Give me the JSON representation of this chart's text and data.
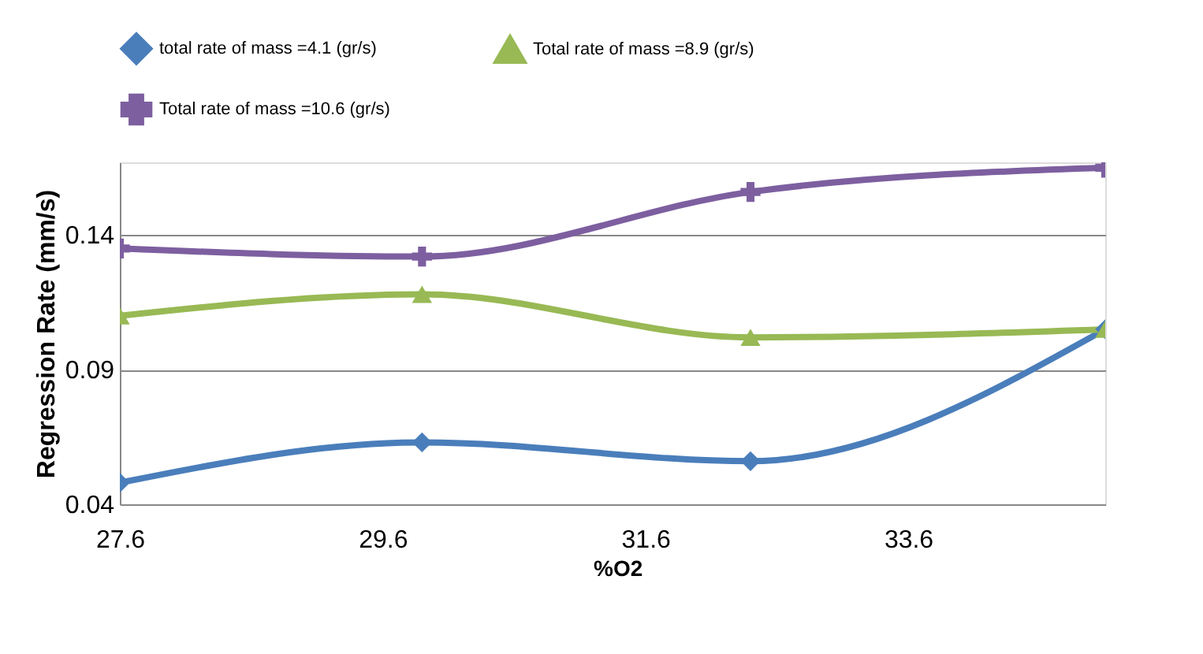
{
  "chart_data": {
    "type": "line",
    "xlabel": "%O2",
    "ylabel": "Regression Rate (mm/s)",
    "x": [
      27.6,
      29.9,
      32.4,
      35.1
    ],
    "series": [
      {
        "name": "total rate of mass =4.1 (gr/s)",
        "color": "#4a7ebb",
        "marker": "diamond",
        "values": [
          0.048,
          0.063,
          0.056,
          0.105
        ]
      },
      {
        "name": "Total rate of mass =8.9 (gr/s)",
        "color": "#98b954",
        "marker": "triangle",
        "values": [
          0.11,
          0.118,
          0.102,
          0.105
        ]
      },
      {
        "name": "Total rate of mass =10.6 (gr/s)",
        "color": "#7d5fa0",
        "marker": "cross",
        "values": [
          0.135,
          0.132,
          0.156,
          0.165
        ]
      }
    ],
    "xlim": [
      27.6,
      35.1
    ],
    "xticks": [
      27.6,
      29.6,
      31.6,
      33.6
    ],
    "ylim": [
      0.04,
      0.167
    ],
    "yticks": [
      0.04,
      0.09,
      0.14
    ],
    "grid": "y",
    "legend": "top"
  }
}
